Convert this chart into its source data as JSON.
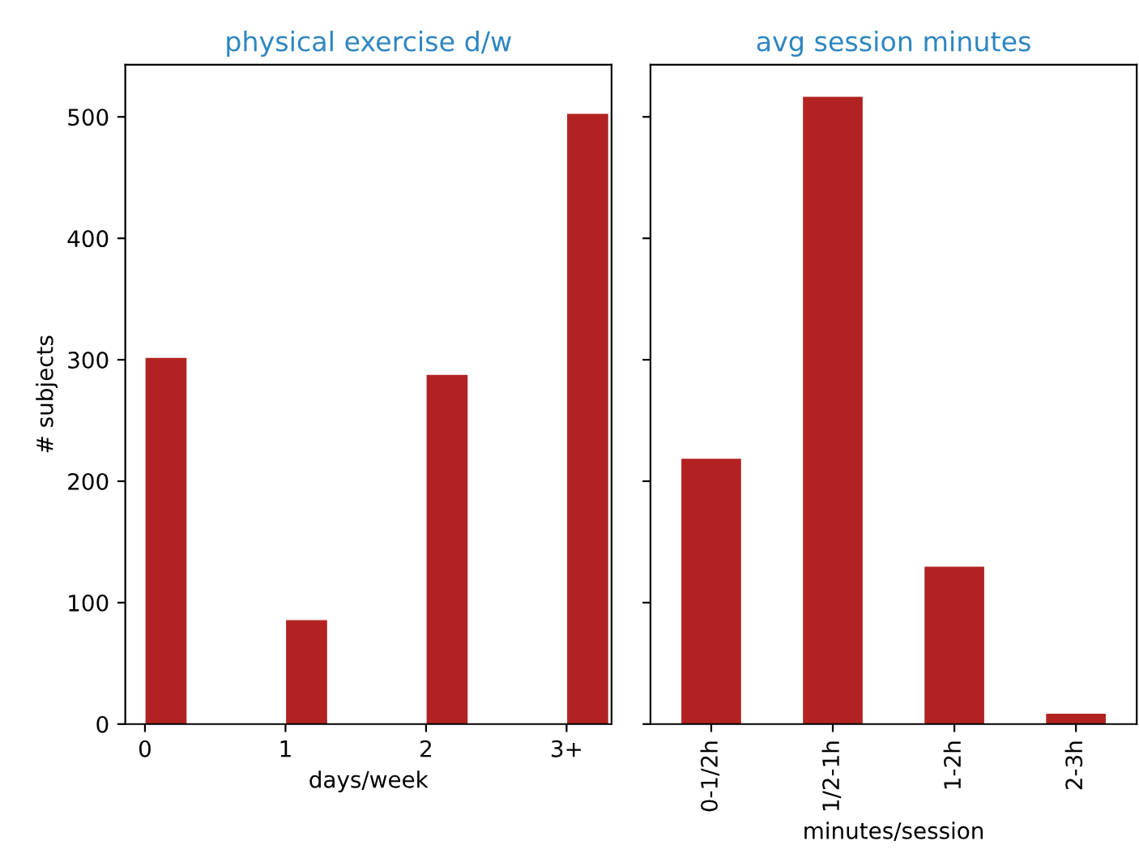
{
  "chart_data": [
    {
      "type": "bar",
      "title": "physical exercise d/w",
      "xlabel": "days/week",
      "ylabel": "# subjects",
      "categories": [
        "0",
        "1",
        "2",
        "3+"
      ],
      "values": [
        302,
        86,
        288,
        503
      ],
      "color": "#b22222",
      "ylim": [
        0,
        543
      ],
      "yticks": [
        0,
        100,
        200,
        300,
        400,
        500
      ],
      "grid": false,
      "legend": false
    },
    {
      "type": "bar",
      "title": "avg session minutes",
      "xlabel": "minutes/session",
      "categories": [
        "0-1/2h",
        "1/2-1h",
        "1-2h",
        "2-3h"
      ],
      "values": [
        219,
        517,
        130,
        9
      ],
      "color": "#b22222",
      "ylim": [
        0,
        543
      ],
      "yticks": [
        0,
        100,
        200,
        300,
        400,
        500
      ],
      "tick_labels": "x",
      "grid": false,
      "legend": false
    }
  ]
}
